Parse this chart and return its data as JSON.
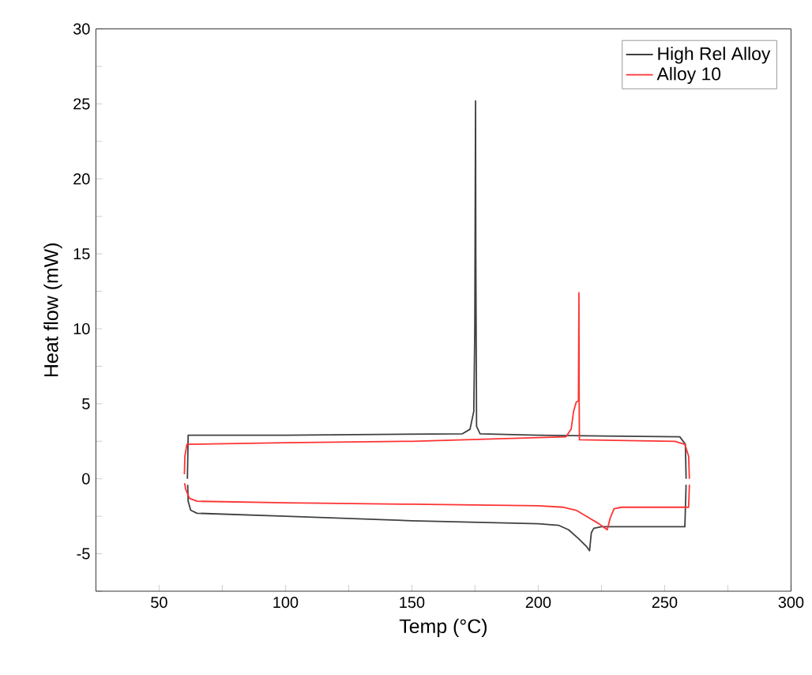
{
  "chart_data": {
    "type": "line",
    "xlabel": "Temp (°C)",
    "ylabel": "Heat flow (mW)",
    "xlim": [
      25,
      300
    ],
    "ylim": [
      -7.5,
      30
    ],
    "xticks": [
      50,
      {
        "value": 75,
        "label": null
      },
      100,
      {
        "value": 125,
        "label": null
      },
      150,
      {
        "value": 175,
        "label": null
      },
      200,
      {
        "value": 225,
        "label": null
      },
      250,
      {
        "value": 275,
        "label": null
      },
      300
    ],
    "yticks": [
      {
        "value": -7.5,
        "label": null
      },
      -5,
      {
        "value": -2.5,
        "label": null
      },
      0,
      {
        "value": 2.5,
        "label": null
      },
      5,
      {
        "value": 7.5,
        "label": null
      },
      10,
      {
        "value": 12.5,
        "label": null
      },
      15,
      {
        "value": 17.5,
        "label": null
      },
      20,
      {
        "value": 22.5,
        "label": null
      },
      25,
      {
        "value": 27.5,
        "label": null
      },
      30
    ],
    "legend": "top right",
    "grid": false,
    "marker": "none",
    "line_style": "solid",
    "series": [
      {
        "name": "High Rel Alloy",
        "color": "#404040",
        "x": [
          61.2,
          61.5,
          100,
          170,
          173,
          174.5,
          174.9,
          175.2,
          175.3,
          175.6,
          177,
          200,
          256,
          258.2,
          258.5
        ],
        "values": [
          0,
          2.9,
          2.9,
          3.0,
          3.3,
          4.5,
          10,
          25.2,
          15,
          3.5,
          3.0,
          2.9,
          2.8,
          2.3,
          0
        ]
      },
      {
        "color": "#404040",
        "x": [
          61.3,
          61.5,
          62.5,
          65,
          100,
          150,
          200,
          208,
          212,
          216,
          219,
          220.3,
          221,
          222,
          225,
          258,
          258.5
        ],
        "values": [
          -0.4,
          -1.5,
          -2.1,
          -2.3,
          -2.5,
          -2.8,
          -3.0,
          -3.1,
          -3.4,
          -4.0,
          -4.5,
          -4.8,
          -3.6,
          -3.3,
          -3.2,
          -3.2,
          -0.4
        ]
      },
      {
        "name": "Alloy 10",
        "color": "#ff3333",
        "x": [
          60,
          60.2,
          61,
          100,
          150,
          211,
          213,
          214,
          215,
          215.9,
          216.1,
          216.2,
          216.3,
          254,
          258,
          259.5,
          259.8
        ],
        "values": [
          0.3,
          1.5,
          2.3,
          2.4,
          2.5,
          2.8,
          3.3,
          4.5,
          5.1,
          5.2,
          12.4,
          5,
          2.6,
          2.5,
          2.3,
          1.5,
          0
        ]
      },
      {
        "color": "#ff3333",
        "x": [
          60.1,
          60.5,
          62,
          65,
          100,
          150,
          200,
          210,
          215,
          220,
          224,
          227.3,
          228.5,
          230,
          233,
          259.5,
          259.8
        ],
        "values": [
          -0.3,
          -0.7,
          -1.3,
          -1.5,
          -1.6,
          -1.7,
          -1.8,
          -1.9,
          -2.1,
          -2.6,
          -3.0,
          -3.4,
          -2.6,
          -2.0,
          -1.9,
          -1.9,
          -0.4
        ]
      }
    ]
  }
}
